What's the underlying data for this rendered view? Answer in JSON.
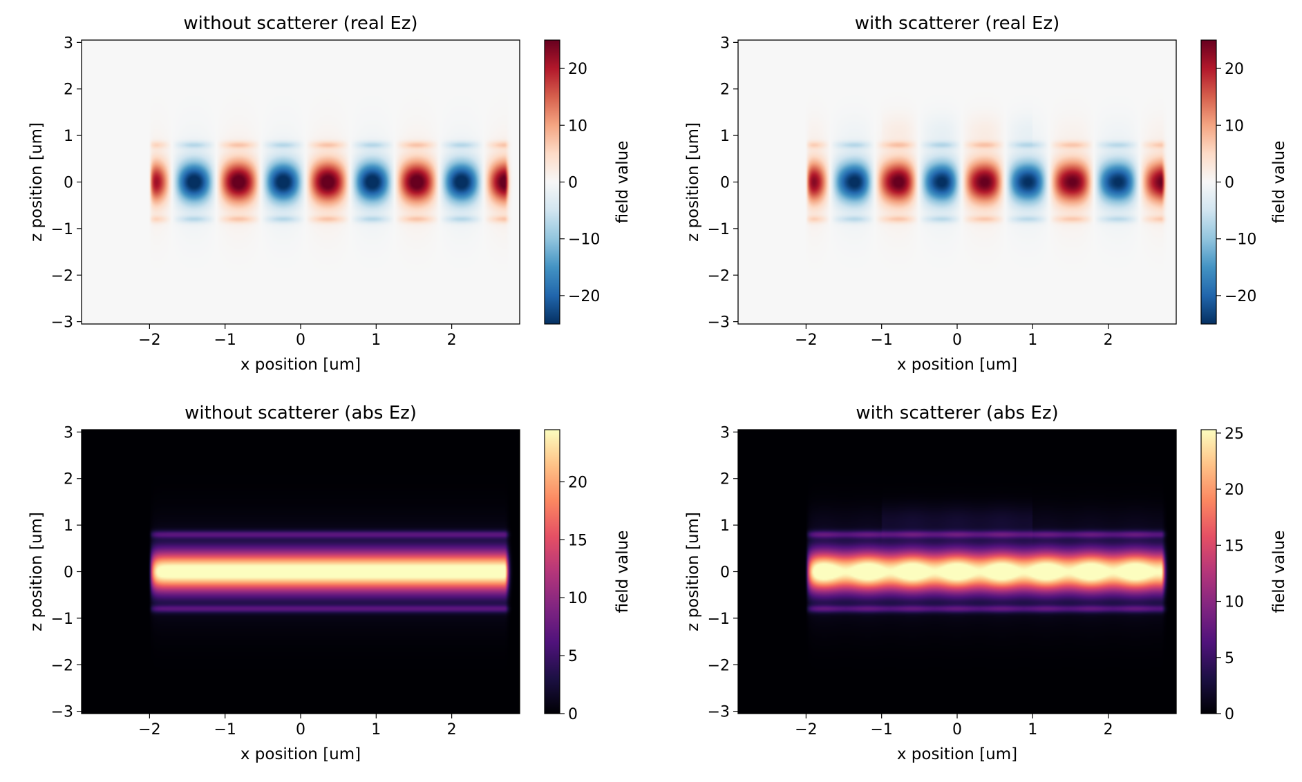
{
  "chart_data": [
    {
      "type": "heatmap",
      "title": "without scatterer (real Ez)",
      "xlabel": "x position [um]",
      "ylabel": "z position [um]",
      "xlim": [
        -2.9,
        2.9
      ],
      "ylim": [
        -3.05,
        3.05
      ],
      "xticks": [
        -2,
        -1,
        0,
        1,
        2
      ],
      "yticks": [
        -3,
        -2,
        -1,
        0,
        1,
        2,
        3
      ],
      "colorbar_label": "field value",
      "colorbar_range": [
        -25,
        25
      ],
      "colorbar_ticks": [
        -20,
        -10,
        0,
        10,
        20
      ],
      "colormap": "RdBu_r",
      "field": {
        "kind": "real",
        "source_x": -2.0,
        "end_x": 2.7,
        "period": 1.18,
        "peak": 25,
        "width": 0.42,
        "scattered": false
      }
    },
    {
      "type": "heatmap",
      "title": "with scatterer (real Ez)",
      "xlabel": "x position [um]",
      "ylabel": "z position [um]",
      "xlim": [
        -2.9,
        2.9
      ],
      "ylim": [
        -3.05,
        3.05
      ],
      "xticks": [
        -2,
        -1,
        0,
        1,
        2
      ],
      "yticks": [
        -3,
        -2,
        -1,
        0,
        1,
        2,
        3
      ],
      "colorbar_label": "field value",
      "colorbar_range": [
        -25,
        25
      ],
      "colorbar_ticks": [
        -20,
        -10,
        0,
        10,
        20
      ],
      "colormap": "RdBu_r",
      "field": {
        "kind": "real",
        "source_x": -2.0,
        "end_x": 2.7,
        "period": 1.18,
        "peak": 25,
        "width": 0.42,
        "scattered": true
      }
    },
    {
      "type": "heatmap",
      "title": "without scatterer (abs Ez)",
      "xlabel": "x position [um]",
      "ylabel": "z position [um]",
      "xlim": [
        -2.9,
        2.9
      ],
      "ylim": [
        -3.05,
        3.05
      ],
      "xticks": [
        -2,
        -1,
        0,
        1,
        2
      ],
      "yticks": [
        -3,
        -2,
        -1,
        0,
        1,
        2,
        3
      ],
      "colorbar_label": "field value",
      "colorbar_range": [
        0,
        24.5
      ],
      "colorbar_ticks": [
        0,
        5,
        10,
        15,
        20
      ],
      "colormap": "magma",
      "field": {
        "kind": "abs",
        "source_x": -2.0,
        "end_x": 2.7,
        "period": 1.18,
        "peak": 24.5,
        "width": 0.42,
        "scattered": false
      }
    },
    {
      "type": "heatmap",
      "title": "with scatterer (abs Ez)",
      "xlabel": "x position [um]",
      "ylabel": "z position [um]",
      "xlim": [
        -2.9,
        2.9
      ],
      "ylim": [
        -3.05,
        3.05
      ],
      "xticks": [
        -2,
        -1,
        0,
        1,
        2
      ],
      "yticks": [
        -3,
        -2,
        -1,
        0,
        1,
        2,
        3
      ],
      "colorbar_label": "field value",
      "colorbar_range": [
        0,
        25.3
      ],
      "colorbar_ticks": [
        0,
        5,
        10,
        15,
        20,
        25
      ],
      "colormap": "magma",
      "field": {
        "kind": "abs",
        "source_x": -2.0,
        "end_x": 2.7,
        "period": 1.18,
        "peak": 25.3,
        "width": 0.42,
        "scattered": true
      }
    }
  ]
}
